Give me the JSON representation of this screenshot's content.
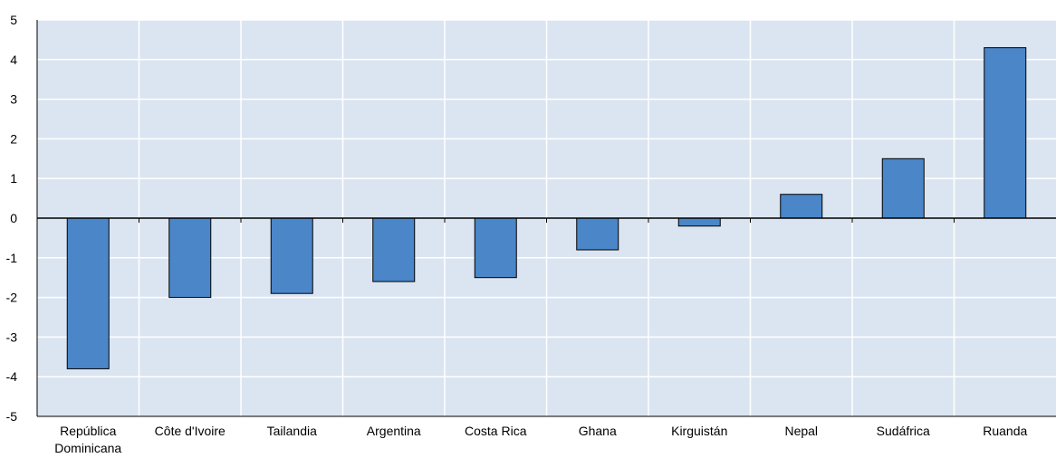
{
  "chart_data": {
    "type": "bar",
    "categories": [
      [
        "República",
        "Dominicana"
      ],
      [
        "Côte d'Ivoire"
      ],
      [
        "Tailandia"
      ],
      [
        "Argentina"
      ],
      [
        "Costa Rica"
      ],
      [
        "Ghana"
      ],
      [
        "Kirguistán"
      ],
      [
        "Nepal"
      ],
      [
        "Sudáfrica"
      ],
      [
        "Ruanda"
      ]
    ],
    "values": [
      -3.8,
      -2.0,
      -1.9,
      -1.6,
      -1.5,
      -0.8,
      -0.2,
      0.6,
      1.5,
      4.3
    ],
    "ylim": [
      -5,
      5
    ],
    "yticks": [
      5,
      4,
      3,
      2,
      1,
      0,
      -1,
      -2,
      -3,
      -4,
      -5
    ],
    "grid": true,
    "background_color": "#dbe5f1",
    "bar_color": "#4a86c8",
    "bar_outline_color": "#000000",
    "gridline_color": "#ffffff"
  }
}
